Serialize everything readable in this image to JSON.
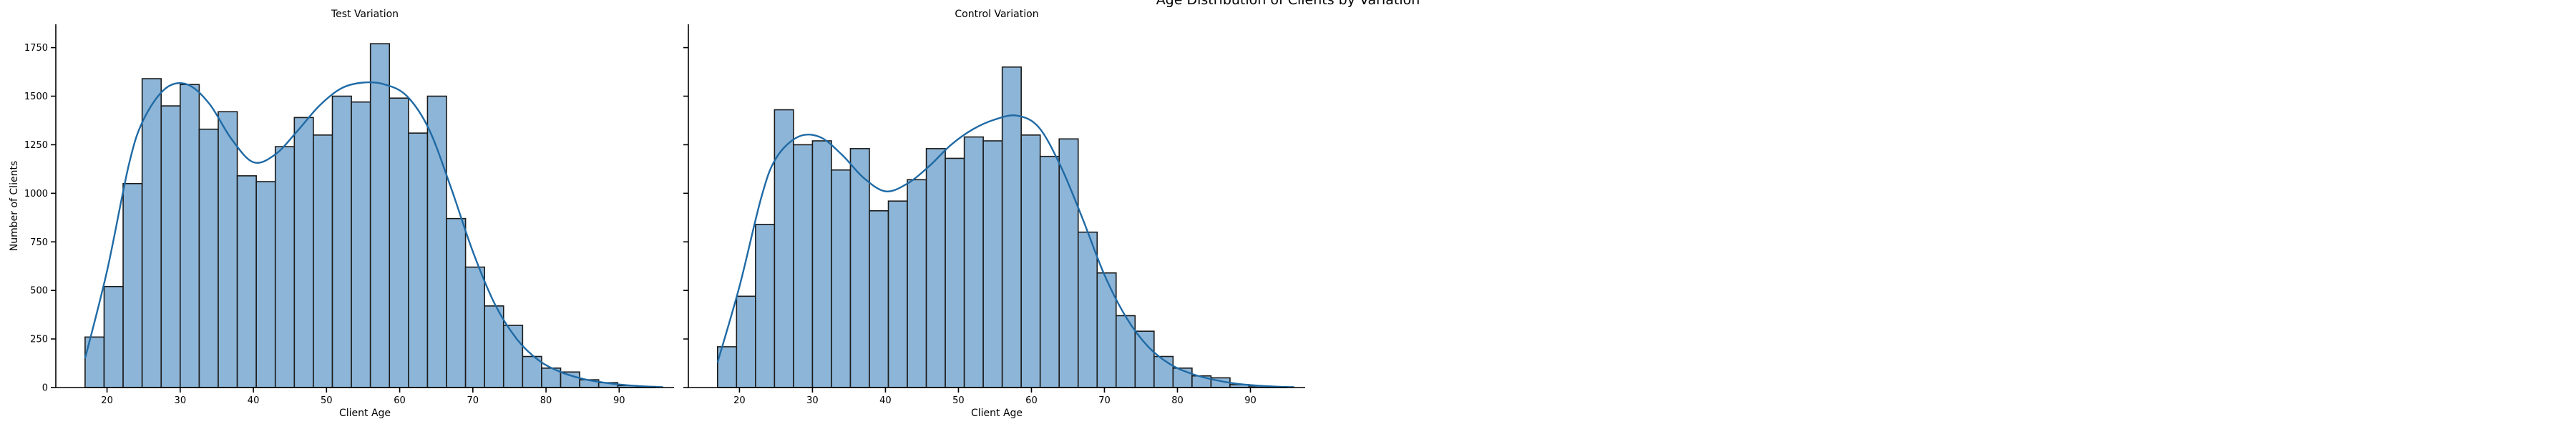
{
  "suptitle": "Age Distribution of Clients by Variation",
  "colors": {
    "bar_fill": "#8db5d7",
    "bar_edge": "#1a1a1a",
    "kde": "#1f6aa5"
  },
  "chart_data": [
    {
      "type": "bar",
      "title": "Test Variation",
      "xlabel": "Client Age",
      "ylabel": "Number of Clients",
      "xlim": [
        13,
        97.5
      ],
      "ylim": [
        0,
        1870
      ],
      "xticks": [
        20,
        30,
        40,
        50,
        60,
        70,
        80,
        90
      ],
      "yticks": [
        0,
        250,
        500,
        750,
        1000,
        1250,
        1500,
        1750
      ],
      "bin_start": 17,
      "bin_width": 2.6,
      "values": [
        260,
        520,
        1050,
        1590,
        1450,
        1560,
        1330,
        1420,
        1090,
        1060,
        1240,
        1390,
        1300,
        1500,
        1470,
        1770,
        1490,
        1310,
        1500,
        870,
        620,
        420,
        320,
        160,
        100,
        80,
        40,
        25,
        10,
        5
      ],
      "kde": {
        "x": [
          17,
          20,
          23,
          25,
          28,
          31,
          34,
          37,
          40,
          43,
          46,
          49,
          52,
          55,
          58,
          61,
          64,
          67,
          70,
          73,
          76,
          79,
          82,
          85,
          88,
          91,
          94,
          96
        ],
        "y": [
          150,
          600,
          1150,
          1380,
          1540,
          1560,
          1460,
          1280,
          1160,
          1200,
          1320,
          1450,
          1540,
          1570,
          1560,
          1500,
          1330,
          1030,
          700,
          430,
          250,
          140,
          80,
          45,
          25,
          12,
          5,
          2
        ]
      }
    },
    {
      "type": "bar",
      "title": "Control Variation",
      "xlabel": "Client Age",
      "ylabel": "",
      "xlim": [
        13,
        97.5
      ],
      "ylim": [
        0,
        1870
      ],
      "xticks": [
        20,
        30,
        40,
        50,
        60,
        70,
        80,
        90
      ],
      "yticks": [
        0,
        250,
        500,
        750,
        1000,
        1250,
        1500,
        1750
      ],
      "bin_start": 17,
      "bin_width": 2.6,
      "values": [
        210,
        470,
        840,
        1430,
        1250,
        1270,
        1120,
        1230,
        910,
        960,
        1070,
        1230,
        1180,
        1290,
        1270,
        1650,
        1300,
        1190,
        1280,
        800,
        590,
        370,
        290,
        160,
        100,
        60,
        50,
        15,
        8,
        4
      ],
      "kde": {
        "x": [
          17,
          20,
          23,
          25,
          28,
          31,
          34,
          37,
          40,
          43,
          46,
          49,
          52,
          55,
          58,
          61,
          64,
          67,
          70,
          73,
          76,
          79,
          82,
          85,
          88,
          91,
          94,
          96
        ],
        "y": [
          130,
          520,
          980,
          1180,
          1290,
          1290,
          1200,
          1080,
          1010,
          1050,
          1140,
          1250,
          1330,
          1380,
          1400,
          1340,
          1140,
          870,
          580,
          360,
          210,
          120,
          70,
          40,
          20,
          10,
          4,
          2
        ]
      }
    }
  ]
}
